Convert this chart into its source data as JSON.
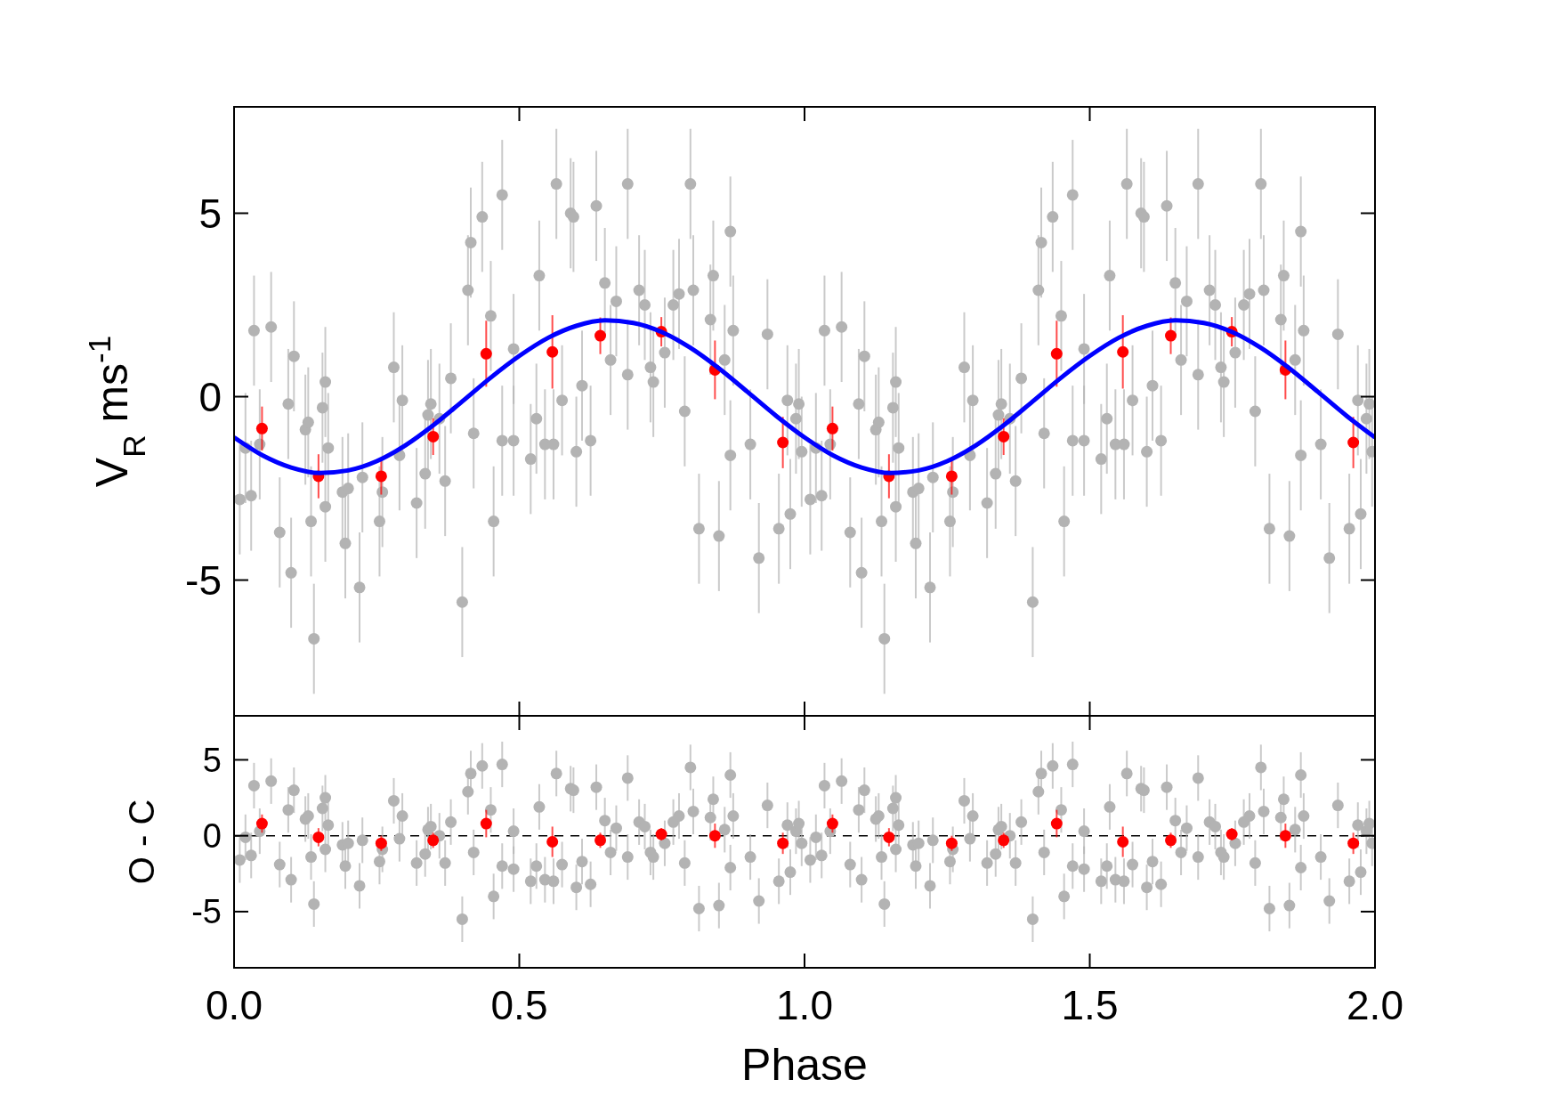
{
  "chart_data": [
    {
      "type": "scatter",
      "ylabel": "V$_{R}$ ms$^{-1}$",
      "xlim": [
        0,
        2
      ],
      "ylim": [
        -8.7,
        7.9
      ],
      "xticks": [
        {
          "value": 0,
          "label": null
        },
        {
          "value": 0.5,
          "label": null
        },
        {
          "value": 1,
          "label": null
        },
        {
          "value": 1.5,
          "label": null
        },
        {
          "value": 2,
          "label": null
        }
      ],
      "yticks": [
        -5,
        0,
        5
      ],
      "tick_labels": "y",
      "marker": "circle",
      "series": [
        {
          "color": "#b3b3b3",
          "x": [
            0.01,
            0.02,
            0.03,
            0.035,
            0.045,
            0.065,
            0.08,
            0.095,
            0.1,
            0.105,
            0.125,
            0.13,
            0.135,
            0.14,
            0.155,
            0.16,
            0.16,
            0.165,
            0.19,
            0.195,
            0.2,
            0.22,
            0.225,
            0.255,
            0.26,
            0.28,
            0.29,
            0.295,
            0.32,
            0.335,
            0.34,
            0.345,
            0.36,
            0.37,
            0.38,
            0.4,
            0.41,
            0.415,
            0.42,
            0.435,
            0.45,
            0.455,
            0.47,
            0.47,
            0.49,
            0.49,
            0.52,
            0.53,
            0.535,
            0.545,
            0.56,
            0.565,
            0.575,
            0.59,
            0.595,
            0.6,
            0.61,
            0.625,
            0.635,
            0.65,
            0.66,
            0.67,
            0.69,
            0.69,
            0.71,
            0.72,
            0.73,
            0.735,
            0.755,
            0.77,
            0.78,
            0.79,
            0.8,
            0.805,
            0.815,
            0.835,
            0.84,
            0.85,
            0.86,
            0.87,
            0.87,
            0.875,
            0.905,
            0.92,
            0.935,
            0.955,
            0.97,
            0.975,
            0.985,
            0.99,
            0.995,
            1.01,
            1.02,
            1.03,
            1.035,
            1.045,
            1.065,
            1.08,
            1.095,
            1.1,
            1.105,
            1.125,
            1.13,
            1.135,
            1.14,
            1.155,
            1.16,
            1.16,
            1.165,
            1.19,
            1.195,
            1.2,
            1.22,
            1.225,
            1.255,
            1.26,
            1.28,
            1.29,
            1.295,
            1.32,
            1.335,
            1.34,
            1.345,
            1.36,
            1.37,
            1.38,
            1.4,
            1.41,
            1.415,
            1.42,
            1.435,
            1.45,
            1.455,
            1.47,
            1.47,
            1.49,
            1.49,
            1.52,
            1.53,
            1.535,
            1.545,
            1.56,
            1.565,
            1.575,
            1.59,
            1.595,
            1.6,
            1.61,
            1.625,
            1.635,
            1.65,
            1.66,
            1.67,
            1.69,
            1.69,
            1.71,
            1.72,
            1.73,
            1.735,
            1.755,
            1.77,
            1.78,
            1.79,
            1.8,
            1.805,
            1.815,
            1.835,
            1.84,
            1.85,
            1.86,
            1.87,
            1.87,
            1.875,
            1.905,
            1.92,
            1.935,
            1.955,
            1.97,
            1.975,
            1.985,
            1.99,
            1.995
          ],
          "values": [
            -2.8,
            -1.4,
            -2.7,
            1.8,
            -1.3,
            1.9,
            -3.7,
            -0.2,
            -4.8,
            1.1,
            -0.9,
            -0.7,
            -3.4,
            -6.6,
            -0.3,
            0.4,
            -3.0,
            -1.4,
            -2.6,
            -4.0,
            -2.5,
            -5.2,
            -2.2,
            -3.4,
            -2.6,
            0.8,
            -1.6,
            -0.1,
            -2.9,
            -2.1,
            -0.5,
            -0.2,
            -0.6,
            -2.3,
            0.5,
            -5.6,
            2.9,
            4.2,
            -1.0,
            4.9,
            2.2,
            -3.4,
            -1.2,
            5.5,
            -1.2,
            1.3,
            -1.7,
            -0.6,
            3.3,
            -1.3,
            -1.3,
            5.8,
            -0.1,
            5.0,
            4.9,
            -1.5,
            0.3,
            -1.2,
            5.2,
            3.1,
            1.0,
            2.6,
            0.6,
            5.8,
            2.9,
            2.5,
            0.8,
            0.4,
            1.2,
            2.5,
            2.8,
            -0.4,
            5.8,
            2.9,
            -3.6,
            2.1,
            3.3,
            -3.8,
            1.0,
            -1.6,
            4.5,
            1.8,
            -1.3,
            -4.4,
            1.7,
            -3.6,
            -0.1,
            -3.2,
            -0.6,
            -0.2,
            -1.5,
            -2.8,
            -1.4,
            -2.7,
            1.8,
            -1.3,
            1.9,
            -3.7,
            -0.2,
            -4.8,
            1.1,
            -0.9,
            -0.7,
            -3.4,
            -6.6,
            -0.3,
            0.4,
            -3.0,
            -1.4,
            -2.6,
            -4.0,
            -2.5,
            -5.2,
            -2.2,
            -3.4,
            -2.6,
            0.8,
            -1.6,
            -0.1,
            -2.9,
            -2.1,
            -0.5,
            -0.2,
            -0.6,
            -2.3,
            0.5,
            -5.6,
            2.9,
            4.2,
            -1.0,
            4.9,
            2.2,
            -3.4,
            -1.2,
            5.5,
            -1.2,
            1.3,
            -1.7,
            -0.6,
            3.3,
            -1.3,
            -1.3,
            5.8,
            -0.1,
            5.0,
            4.9,
            -1.5,
            0.3,
            -1.2,
            5.2,
            3.1,
            1.0,
            2.6,
            0.6,
            5.8,
            2.9,
            2.5,
            0.8,
            0.4,
            1.2,
            2.5,
            2.8,
            -0.4,
            5.8,
            2.9,
            -3.6,
            2.1,
            3.3,
            -3.8,
            1.0,
            -1.6,
            4.5,
            1.8,
            -1.3,
            -4.4,
            1.7,
            -3.6,
            -0.1,
            -3.2,
            -0.6,
            -0.2,
            -1.5
          ],
          "errors": [
            1.5,
            1.5,
            1.5,
            1.5,
            1.5,
            1.5,
            1.5,
            1.5,
            1.5,
            1.5,
            1.5,
            1.5,
            1.5,
            1.5,
            1.5,
            1.5,
            1.5,
            1.5,
            1.5,
            1.5,
            1.5,
            1.5,
            1.5,
            1.5,
            1.5,
            1.5,
            1.5,
            1.5,
            1.5,
            1.5,
            1.5,
            1.5,
            1.5,
            1.5,
            1.5,
            1.5,
            1.5,
            1.5,
            1.5,
            1.5,
            1.5,
            1.5,
            1.5,
            1.5,
            1.5,
            1.5,
            1.5,
            1.5,
            1.5,
            1.5,
            1.5,
            1.5,
            1.5,
            1.5,
            1.5,
            1.5,
            1.5,
            1.5,
            1.5,
            1.5,
            1.5,
            1.5,
            1.5,
            1.5,
            1.5,
            1.5,
            1.5,
            1.5,
            1.5,
            1.5,
            1.5,
            1.5,
            1.5,
            1.5,
            1.5,
            1.5,
            1.5,
            1.5,
            1.5,
            1.5,
            1.5,
            1.5,
            1.5,
            1.5,
            1.5,
            1.5,
            1.5,
            1.5,
            1.5,
            1.5,
            1.5,
            1.5,
            1.5,
            1.5,
            1.5,
            1.5,
            1.5,
            1.5,
            1.5,
            1.5,
            1.5,
            1.5,
            1.5,
            1.5,
            1.5,
            1.5,
            1.5,
            1.5,
            1.5,
            1.5,
            1.5,
            1.5,
            1.5,
            1.5,
            1.5,
            1.5,
            1.5,
            1.5,
            1.5,
            1.5,
            1.5,
            1.5,
            1.5,
            1.5,
            1.5,
            1.5,
            1.5,
            1.5,
            1.5,
            1.5,
            1.5,
            1.5,
            1.5,
            1.5,
            1.5,
            1.5,
            1.5,
            1.5,
            1.5,
            1.5,
            1.5,
            1.5,
            1.5,
            1.5,
            1.5,
            1.5,
            1.5,
            1.5,
            1.5,
            1.5,
            1.5,
            1.5,
            1.5,
            1.5,
            1.5,
            1.5,
            1.5,
            1.5,
            1.5,
            1.5,
            1.5,
            1.5,
            1.5,
            1.5,
            1.5,
            1.5,
            1.5,
            1.5,
            1.5,
            1.5,
            1.5,
            1.5,
            1.5,
            1.5,
            1.5,
            1.5,
            1.5,
            1.5,
            1.5,
            1.5,
            1.5,
            1.5
          ]
        },
        {
          "color": "#ff0000",
          "x": [
            0.049,
            0.148,
            0.258,
            0.349,
            0.442,
            0.558,
            0.642,
            0.749,
            0.843,
            0.962,
            1.049,
            1.148,
            1.258,
            1.349,
            1.442,
            1.558,
            1.642,
            1.749,
            1.843,
            1.962
          ],
          "values": [
            -0.87,
            -2.17,
            -2.17,
            -1.09,
            1.17,
            1.22,
            1.66,
            1.77,
            0.73,
            -1.25,
            -0.87,
            -2.17,
            -2.17,
            -1.09,
            1.17,
            1.22,
            1.66,
            1.77,
            0.73,
            -1.25
          ],
          "errors": [
            0.6,
            0.6,
            0.5,
            0.5,
            0.9,
            1.0,
            0.5,
            0.4,
            0.8,
            0.7,
            0.6,
            0.6,
            0.5,
            0.5,
            0.9,
            1.0,
            0.5,
            0.4,
            0.8,
            0.7
          ]
        },
        {
          "type": "line",
          "marker": "none",
          "color": "#0000ff",
          "x": [
            0,
            0.05,
            0.1,
            0.15,
            0.2,
            0.25,
            0.3,
            0.35,
            0.4,
            0.45,
            0.5,
            0.55,
            0.6,
            0.65,
            0.7,
            0.75,
            0.8,
            0.85,
            0.9,
            0.95,
            1,
            1.05,
            1.1,
            1.15,
            1.2,
            1.25,
            1.3,
            1.35,
            1.4,
            1.45,
            1.5,
            1.55,
            1.6,
            1.65,
            1.7,
            1.75,
            1.8,
            1.85,
            1.9,
            1.95,
            2
          ],
          "values": [
            -1.11,
            -1.6,
            -1.93,
            -2.08,
            -2.01,
            -1.76,
            -1.33,
            -0.77,
            -0.13,
            0.52,
            1.11,
            1.6,
            1.93,
            2.08,
            2.01,
            1.76,
            1.33,
            0.77,
            0.13,
            -0.52,
            -1.11,
            -1.6,
            -1.93,
            -2.08,
            -2.01,
            -1.76,
            -1.33,
            -0.77,
            -0.13,
            0.52,
            1.11,
            1.6,
            1.93,
            2.08,
            2.01,
            1.76,
            1.33,
            0.77,
            0.13,
            -0.52,
            -1.11
          ]
        }
      ]
    },
    {
      "type": "scatter",
      "xlabel": "Phase",
      "ylabel": "O - C",
      "xlim": [
        0,
        2
      ],
      "ylim": [
        -8.7,
        7.9
      ],
      "xticks": [
        {
          "value": 0,
          "label": "0.0"
        },
        {
          "value": 0.5,
          "label": "0.5"
        },
        {
          "value": 1,
          "label": "1.0"
        },
        {
          "value": 1.5,
          "label": "1.5"
        },
        {
          "value": 2,
          "label": "2.0"
        }
      ],
      "yticks": [
        -5,
        0,
        5
      ],
      "marker": "circle",
      "ref_lines": [
        {
          "axis": "y",
          "value": 0,
          "color": "#000000",
          "line_style": "dashed"
        }
      ],
      "series": [
        {
          "color": "#b3b3b3",
          "x": [
            0.01,
            0.02,
            0.03,
            0.035,
            0.045,
            0.065,
            0.08,
            0.095,
            0.1,
            0.105,
            0.125,
            0.13,
            0.135,
            0.14,
            0.155,
            0.16,
            0.16,
            0.165,
            0.19,
            0.195,
            0.2,
            0.22,
            0.225,
            0.255,
            0.26,
            0.28,
            0.29,
            0.295,
            0.32,
            0.335,
            0.34,
            0.345,
            0.36,
            0.37,
            0.38,
            0.4,
            0.41,
            0.415,
            0.42,
            0.435,
            0.45,
            0.455,
            0.47,
            0.47,
            0.49,
            0.49,
            0.52,
            0.53,
            0.535,
            0.545,
            0.56,
            0.565,
            0.575,
            0.59,
            0.595,
            0.6,
            0.61,
            0.625,
            0.635,
            0.65,
            0.66,
            0.67,
            0.69,
            0.69,
            0.71,
            0.72,
            0.73,
            0.735,
            0.755,
            0.77,
            0.78,
            0.79,
            0.8,
            0.805,
            0.815,
            0.835,
            0.84,
            0.85,
            0.86,
            0.87,
            0.87,
            0.875,
            0.905,
            0.92,
            0.935,
            0.955,
            0.97,
            0.975,
            0.985,
            0.99,
            0.995,
            1.01,
            1.02,
            1.03,
            1.035,
            1.045,
            1.065,
            1.08,
            1.095,
            1.1,
            1.105,
            1.125,
            1.13,
            1.135,
            1.14,
            1.155,
            1.16,
            1.16,
            1.165,
            1.19,
            1.195,
            1.2,
            1.22,
            1.225,
            1.255,
            1.26,
            1.28,
            1.29,
            1.295,
            1.32,
            1.335,
            1.34,
            1.345,
            1.36,
            1.37,
            1.38,
            1.4,
            1.41,
            1.415,
            1.42,
            1.435,
            1.45,
            1.455,
            1.47,
            1.47,
            1.49,
            1.49,
            1.52,
            1.53,
            1.535,
            1.545,
            1.56,
            1.565,
            1.575,
            1.59,
            1.595,
            1.6,
            1.61,
            1.625,
            1.635,
            1.65,
            1.66,
            1.67,
            1.69,
            1.69,
            1.71,
            1.72,
            1.73,
            1.735,
            1.755,
            1.77,
            1.78,
            1.79,
            1.8,
            1.805,
            1.815,
            1.835,
            1.84,
            1.85,
            1.86,
            1.87,
            1.87,
            1.875,
            1.905,
            1.92,
            1.935,
            1.955,
            1.97,
            1.975,
            1.985,
            1.99,
            1.995
          ],
          "values": [
            -1.6,
            -0.1,
            -1.3,
            3.3,
            0.3,
            3.6,
            -1.9,
            1.7,
            -2.9,
            3.0,
            1.1,
            1.3,
            -1.4,
            -4.5,
            1.8,
            2.5,
            -0.9,
            0.7,
            -0.6,
            -2.0,
            -0.5,
            -3.3,
            -0.3,
            -1.7,
            -0.9,
            2.3,
            -0.2,
            1.3,
            -1.8,
            -1.2,
            0.4,
            0.6,
            0.0,
            -1.8,
            0.9,
            -5.5,
            2.9,
            4.1,
            -1.1,
            4.6,
            1.7,
            -4.0,
            -2.0,
            4.7,
            -2.2,
            0.3,
            -3.0,
            -2.0,
            1.9,
            -2.9,
            -3.0,
            4.1,
            -1.9,
            3.1,
            3.0,
            -3.4,
            -1.7,
            -3.2,
            3.2,
            1.0,
            -1.1,
            0.5,
            -1.4,
            3.8,
            0.9,
            0.6,
            -1.1,
            -1.4,
            -0.5,
            0.9,
            1.3,
            -1.8,
            4.5,
            1.6,
            -4.8,
            1.2,
            2.4,
            -4.6,
            0.4,
            -2.1,
            4.0,
            1.3,
            -1.4,
            -4.3,
            2.0,
            -3.0,
            0.7,
            -2.4,
            0.3,
            0.8,
            -0.5,
            -1.6,
            -0.1,
            -1.3,
            3.3,
            0.3,
            3.6,
            -1.9,
            1.7,
            -2.9,
            3.0,
            1.1,
            1.3,
            -1.4,
            -4.5,
            1.8,
            2.5,
            -0.9,
            0.7,
            -0.6,
            -2.0,
            -0.5,
            -3.3,
            -0.3,
            -1.7,
            -0.9,
            2.3,
            -0.2,
            1.3,
            -1.8,
            -1.2,
            0.4,
            0.6,
            0.0,
            -1.8,
            0.9,
            -5.5,
            2.9,
            4.1,
            -1.1,
            4.6,
            1.7,
            -4.0,
            -2.0,
            4.7,
            -2.2,
            0.3,
            -3.0,
            -2.0,
            1.9,
            -2.9,
            -3.0,
            4.1,
            -1.9,
            3.1,
            3.0,
            -3.4,
            -1.7,
            -3.2,
            3.2,
            1.0,
            -1.1,
            0.5,
            -1.4,
            3.8,
            0.9,
            0.6,
            -1.1,
            -1.4,
            -0.5,
            0.9,
            1.3,
            -1.8,
            4.5,
            1.6,
            -4.8,
            1.2,
            2.4,
            -4.6,
            0.4,
            -2.1,
            4.0,
            1.3,
            -1.4,
            -4.3,
            2.0,
            -3.0,
            0.7,
            -2.4,
            0.3,
            0.8,
            -0.5
          ],
          "errors": [
            1.5,
            1.5,
            1.5,
            1.5,
            1.5,
            1.5,
            1.5,
            1.5,
            1.5,
            1.5,
            1.5,
            1.5,
            1.5,
            1.5,
            1.5,
            1.5,
            1.5,
            1.5,
            1.5,
            1.5,
            1.5,
            1.5,
            1.5,
            1.5,
            1.5,
            1.5,
            1.5,
            1.5,
            1.5,
            1.5,
            1.5,
            1.5,
            1.5,
            1.5,
            1.5,
            1.5,
            1.5,
            1.5,
            1.5,
            1.5,
            1.5,
            1.5,
            1.5,
            1.5,
            1.5,
            1.5,
            1.5,
            1.5,
            1.5,
            1.5,
            1.5,
            1.5,
            1.5,
            1.5,
            1.5,
            1.5,
            1.5,
            1.5,
            1.5,
            1.5,
            1.5,
            1.5,
            1.5,
            1.5,
            1.5,
            1.5,
            1.5,
            1.5,
            1.5,
            1.5,
            1.5,
            1.5,
            1.5,
            1.5,
            1.5,
            1.5,
            1.5,
            1.5,
            1.5,
            1.5,
            1.5,
            1.5,
            1.5,
            1.5,
            1.5,
            1.5,
            1.5,
            1.5,
            1.5,
            1.5,
            1.5,
            1.5,
            1.5,
            1.5,
            1.5,
            1.5,
            1.5,
            1.5,
            1.5,
            1.5,
            1.5,
            1.5,
            1.5,
            1.5,
            1.5,
            1.5,
            1.5,
            1.5,
            1.5,
            1.5,
            1.5,
            1.5,
            1.5,
            1.5,
            1.5,
            1.5,
            1.5,
            1.5,
            1.5,
            1.5,
            1.5,
            1.5,
            1.5,
            1.5,
            1.5,
            1.5,
            1.5,
            1.5,
            1.5,
            1.5,
            1.5,
            1.5,
            1.5,
            1.5,
            1.5,
            1.5,
            1.5,
            1.5,
            1.5,
            1.5,
            1.5,
            1.5,
            1.5,
            1.5,
            1.5,
            1.5,
            1.5,
            1.5,
            1.5,
            1.5,
            1.5,
            1.5,
            1.5,
            1.5,
            1.5,
            1.5,
            1.5,
            1.5,
            1.5,
            1.5,
            1.5,
            1.5,
            1.5,
            1.5,
            1.5,
            1.5,
            1.5,
            1.5,
            1.5,
            1.5,
            1.5,
            1.5,
            1.5,
            1.5,
            1.5,
            1.5,
            1.5,
            1.5,
            1.5,
            1.5,
            1.5,
            1.5
          ]
        },
        {
          "color": "#ff0000",
          "x": [
            0.049,
            0.148,
            0.258,
            0.349,
            0.442,
            0.558,
            0.642,
            0.749,
            0.843,
            0.962,
            1.049,
            1.148,
            1.258,
            1.349,
            1.442,
            1.558,
            1.642,
            1.749,
            1.843,
            1.962
          ],
          "values": [
            0.8,
            -0.1,
            -0.5,
            -0.3,
            0.8,
            -0.4,
            -0.3,
            0.1,
            0.0,
            -0.5,
            0.8,
            -0.1,
            -0.5,
            -0.3,
            0.8,
            -0.4,
            -0.3,
            0.1,
            0.0,
            -0.5
          ],
          "errors": [
            0.6,
            0.6,
            0.5,
            0.5,
            0.9,
            1.0,
            0.5,
            0.4,
            0.8,
            0.7,
            0.6,
            0.6,
            0.5,
            0.5,
            0.9,
            1.0,
            0.5,
            0.4,
            0.8,
            0.7
          ]
        }
      ]
    }
  ]
}
